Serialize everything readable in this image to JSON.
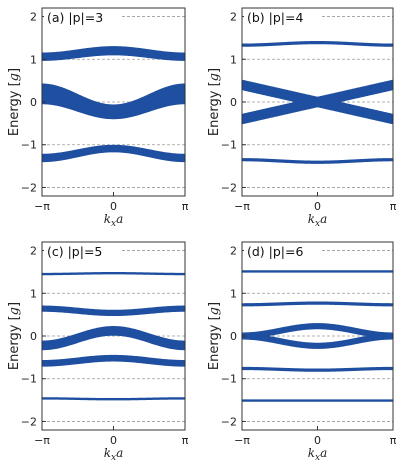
{
  "colors": {
    "band": "#1f4fa0",
    "grid": "#9a9a9a",
    "frame": "#333333"
  },
  "chart_data": [
    {
      "type": "area",
      "title": "(a) |p|=3",
      "ylabel": "Energy [g]",
      "xlabel": "kxa",
      "xlim": [
        -3.14159,
        3.14159
      ],
      "ylim": [
        -2.2,
        2.2
      ],
      "xticks": [
        "−π",
        "0",
        "π"
      ],
      "yticks": [
        -2,
        -1,
        0,
        1,
        2
      ],
      "grid": "horizontal-dashed",
      "bands": [
        {
          "kind": "cos",
          "center": 1.13,
          "amp": 0.07,
          "width": 0.18,
          "wamp": 0.01
        },
        {
          "kind": "cos",
          "center": -0.02,
          "amp": -0.21,
          "width": 0.39,
          "wamp": -0.07
        },
        {
          "kind": "cos",
          "center": -1.2,
          "amp": 0.11,
          "width": 0.16,
          "wamp": -0.01
        }
      ]
    },
    {
      "type": "area",
      "title": "(b) |p|=4",
      "ylabel": "Energy [g]",
      "xlabel": "kxa",
      "xlim": [
        -3.14159,
        3.14159
      ],
      "ylim": [
        -2.2,
        2.2
      ],
      "xticks": [
        "−π",
        "0",
        "π"
      ],
      "yticks": [
        -2,
        -1,
        0,
        1,
        2
      ],
      "grid": "horizontal-dashed",
      "bands": [
        {
          "kind": "cos",
          "center": 1.36,
          "amp": 0.03,
          "width": 0.05,
          "wamp": 0
        },
        {
          "kind": "abs",
          "center": 0,
          "scale": 0.4,
          "width": 0.22
        },
        {
          "kind": "abs",
          "center": 0,
          "scale": -0.4,
          "width": 0.22
        },
        {
          "kind": "cos",
          "center": -1.38,
          "amp": -0.03,
          "width": 0.05,
          "wamp": 0
        }
      ]
    },
    {
      "type": "area",
      "title": "(c) |p|=5",
      "ylabel": "Energy [g]",
      "xlabel": "kxa",
      "xlim": [
        -3.14159,
        3.14159
      ],
      "ylim": [
        -2.2,
        2.2
      ],
      "xticks": [
        "−π",
        "0",
        "π"
      ],
      "yticks": [
        -2,
        -1,
        0,
        1,
        2
      ],
      "grid": "horizontal-dashed",
      "bands": [
        {
          "kind": "cos",
          "center": 1.46,
          "amp": 0.01,
          "width": 0.03,
          "wamp": 0
        },
        {
          "kind": "cos",
          "center": 0.59,
          "amp": -0.05,
          "width": 0.12,
          "wamp": 0
        },
        {
          "kind": "cos",
          "center": -0.05,
          "amp": 0.17,
          "width": 0.2,
          "wamp": 0
        },
        {
          "kind": "cos",
          "center": -0.58,
          "amp": 0.06,
          "width": 0.13,
          "wamp": 0
        },
        {
          "kind": "cos",
          "center": -1.47,
          "amp": -0.01,
          "width": 0.03,
          "wamp": 0
        }
      ]
    },
    {
      "type": "area",
      "title": "(d) |p|=6",
      "ylabel": "Energy [g]",
      "xlabel": "kxa",
      "xlim": [
        -3.14159,
        3.14159
      ],
      "ylim": [
        -2.2,
        2.2
      ],
      "xticks": [
        "−π",
        "0",
        "π"
      ],
      "yticks": [
        -2,
        -1,
        0,
        1,
        2
      ],
      "grid": "horizontal-dashed",
      "bands": [
        {
          "kind": "cos",
          "center": 1.51,
          "amp": 0,
          "width": 0.03,
          "wamp": 0
        },
        {
          "kind": "cos",
          "center": 0.75,
          "amp": 0.02,
          "width": 0.05,
          "wamp": 0
        },
        {
          "kind": "cos",
          "center": 0.12,
          "amp": 0.11,
          "width": 0.12,
          "wamp": 0
        },
        {
          "kind": "cos",
          "center": -0.12,
          "amp": -0.11,
          "width": 0.12,
          "wamp": 0
        },
        {
          "kind": "cos",
          "center": -0.78,
          "amp": -0.02,
          "width": 0.05,
          "wamp": 0
        },
        {
          "kind": "cos",
          "center": -1.51,
          "amp": 0,
          "width": 0.03,
          "wamp": 0
        }
      ]
    }
  ]
}
